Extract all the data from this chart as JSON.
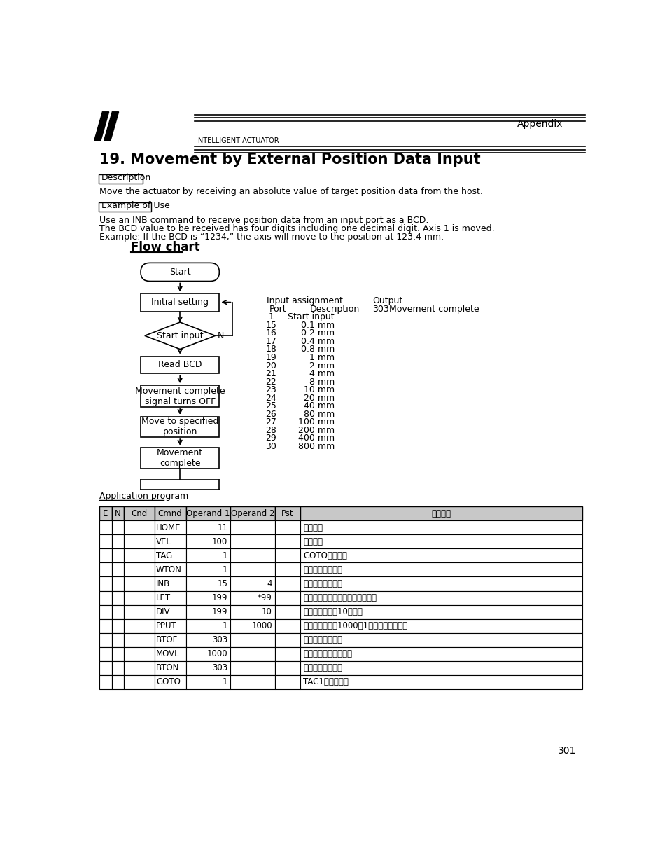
{
  "title": "19. Movement by External Position Data Input",
  "header_text": "INTELLIGENT ACTUATOR",
  "appendix_text": "Appendix",
  "description_label": "Description",
  "description_text": "Move the actuator by receiving an absolute value of target position data from the host.",
  "example_label": "Example of Use",
  "example_text": "Use an INB command to receive position data from an input port as a BCD.\nThe BCD value to be received has four digits including one decimal digit. Axis 1 is moved.\nExample: If the BCD is “1234,” the axis will move to the position at 123.4 mm.",
  "flowchart_title": "Flow chart",
  "input_assignment_header": "Input assignment",
  "output_header": "Output",
  "port_header": "Port",
  "description_header": "Description",
  "output_port": "303",
  "output_desc": "Movement complete",
  "port_data": [
    [
      "1",
      "Start input"
    ],
    [
      "15",
      "0.1 mm"
    ],
    [
      "16",
      "0.2 mm"
    ],
    [
      "17",
      "0.4 mm"
    ],
    [
      "18",
      "0.8 mm"
    ],
    [
      "19",
      "1 mm"
    ],
    [
      "20",
      "2 mm"
    ],
    [
      "21",
      "4 mm"
    ],
    [
      "22",
      "8 mm"
    ],
    [
      "23",
      "10 mm"
    ],
    [
      "24",
      "20 mm"
    ],
    [
      "25",
      "40 mm"
    ],
    [
      "26",
      "80 mm"
    ],
    [
      "27",
      "100 mm"
    ],
    [
      "28",
      "200 mm"
    ],
    [
      "29",
      "400 mm"
    ],
    [
      "30",
      "800 mm"
    ]
  ],
  "app_program_label": "Application program",
  "table_headers": [
    "E",
    "N",
    "Cnd",
    "Cmnd",
    "Operand 1",
    "Operand 2",
    "Pst",
    "コメント"
  ],
  "table_rows": [
    [
      "",
      "",
      "",
      "HOME",
      "11",
      "",
      "",
      "原点復帰"
    ],
    [
      "",
      "",
      "",
      "VEL",
      "100",
      "",
      "",
      "速度設定"
    ],
    [
      "",
      "",
      "",
      "TAG",
      "1",
      "",
      "",
      "GOTOの飛び先"
    ],
    [
      "",
      "",
      "",
      "WTON",
      "1",
      "",
      "",
      "スタート入力待ち"
    ],
    [
      "",
      "",
      "",
      "INB",
      "15",
      "4",
      "",
      "移動位置読み取り"
    ],
    [
      "",
      "",
      "",
      "LET",
      "199",
      "*99",
      "",
      "小数点付けの為実数変数にコピー"
    ],
    [
      "",
      "",
      "",
      "DIV",
      "199",
      "10",
      "",
      "小数点付けの為10で割る"
    ],
    [
      "",
      "",
      "",
      "PPUT",
      "1",
      "1000",
      "",
      "ポジションナン1000の1軸目にデータ代入"
    ],
    [
      "",
      "",
      "",
      "BTOF",
      "303",
      "",
      "",
      "移動完了信号オフ"
    ],
    [
      "",
      "",
      "",
      "MOVL",
      "1000",
      "",
      "",
      "代入された位置に移動"
    ],
    [
      "",
      "",
      "",
      "BTON",
      "303",
      "",
      "",
      "移動完了信号オン"
    ],
    [
      "",
      "",
      "",
      "GOTO",
      "1",
      "",
      "",
      "TAC1にジャンプ"
    ]
  ],
  "page_number": "301",
  "bg_color": "#ffffff",
  "text_color": "#000000",
  "table_header_bg": "#c8c8c8",
  "table_border_color": "#000000"
}
